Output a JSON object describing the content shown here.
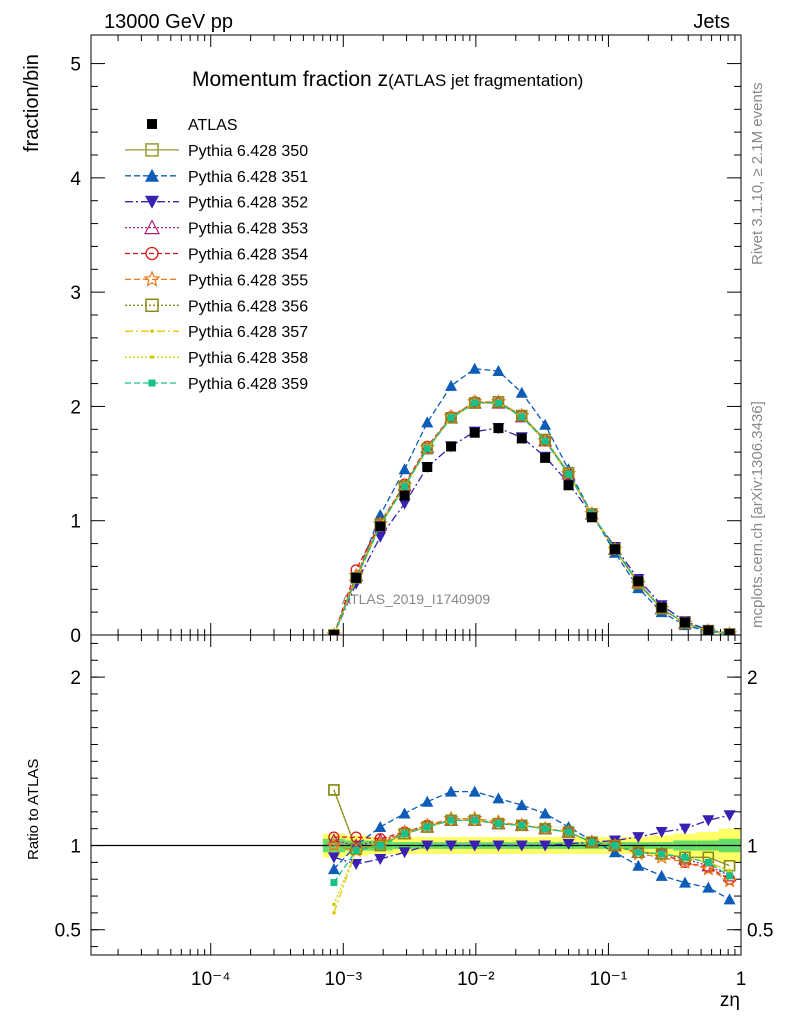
{
  "header": {
    "left": "13000 GeV pp",
    "right": "Jets"
  },
  "side_labels": {
    "rivet": "Rivet 3.1.10, ≥ 2.1M events",
    "mcplots": "mcplots.cern.ch [arXiv:1306.3436]"
  },
  "watermark": "ATLAS_2019_I1740909",
  "chart_data": {
    "type": "line",
    "title_main": "Momentum fraction z",
    "title_sub": "(ATLAS jet fragmentation)",
    "xlabel": "zη",
    "ylabel_top": "fraction/bin",
    "ylabel_ratio": "Ratio to ATLAS",
    "x_scale": "log",
    "xlim": [
      1.25e-05,
      1
    ],
    "ylim_top": [
      0,
      5.25
    ],
    "ylim_ratio": [
      0.35,
      2.25
    ],
    "x_tick_labels": [
      "10⁻⁴",
      "10⁻³",
      "10⁻²",
      "10⁻¹",
      "1"
    ],
    "x_tick_values": [
      0.0001,
      0.001,
      0.01,
      0.1,
      1
    ],
    "y_top_tick_labels": [
      "0",
      "1",
      "2",
      "3",
      "4",
      "5"
    ],
    "y_ratio_tick_labels": [
      "0.5",
      "1",
      "2"
    ],
    "y_ratio_tick_values": [
      0.5,
      1,
      2
    ],
    "legend_position": "top-left",
    "x": [
      0.00085,
      0.00125,
      0.0019,
      0.0029,
      0.0043,
      0.0065,
      0.0098,
      0.0148,
      0.0222,
      0.0333,
      0.05,
      0.075,
      0.112,
      0.168,
      0.252,
      0.378,
      0.567,
      0.82
    ],
    "series": [
      {
        "name": "ATLAS",
        "color": "#000000",
        "marker": "square-filled",
        "dash": "none",
        "values": [
          0.0,
          0.5,
          0.95,
          1.22,
          1.47,
          1.65,
          1.77,
          1.81,
          1.72,
          1.55,
          1.31,
          1.03,
          0.75,
          0.47,
          0.24,
          0.11,
          0.04,
          0.01
        ],
        "ratio": [
          1,
          1,
          1,
          1,
          1,
          1,
          1,
          1,
          1,
          1,
          1,
          1,
          1,
          1,
          1,
          1,
          1,
          1
        ]
      },
      {
        "name": "Pythia 6.428 350",
        "color": "#999933",
        "marker": "square-open",
        "dash": "solid",
        "values": [
          0.0,
          0.5,
          0.97,
          1.3,
          1.63,
          1.9,
          2.03,
          2.04,
          1.92,
          1.71,
          1.42,
          1.06,
          0.75,
          0.45,
          0.23,
          0.105,
          0.037,
          0.009
        ],
        "ratio": [
          1.33,
          0.98,
          1.0,
          1.07,
          1.11,
          1.15,
          1.15,
          1.13,
          1.12,
          1.1,
          1.08,
          1.02,
          1.0,
          0.96,
          0.95,
          0.93,
          0.93,
          0.88
        ]
      },
      {
        "name": "Pythia 6.428 351",
        "color": "#0c5cb8",
        "marker": "triangle-up",
        "dash": "6,3",
        "values": [
          0.0,
          0.5,
          1.05,
          1.45,
          1.86,
          2.18,
          2.33,
          2.31,
          2.12,
          1.84,
          1.45,
          1.06,
          0.72,
          0.41,
          0.2,
          0.086,
          0.03,
          0.007
        ],
        "ratio": [
          0.86,
          1.0,
          1.11,
          1.19,
          1.26,
          1.32,
          1.32,
          1.28,
          1.24,
          1.19,
          1.11,
          1.03,
          0.96,
          0.88,
          0.82,
          0.78,
          0.75,
          0.68
        ]
      },
      {
        "name": "Pythia 6.428 352",
        "color": "#3a20b0",
        "marker": "triangle-down",
        "dash": "8,3,2,3",
        "values": [
          0.0,
          0.45,
          0.86,
          1.15,
          1.47,
          1.65,
          1.78,
          1.81,
          1.73,
          1.56,
          1.33,
          1.05,
          0.77,
          0.49,
          0.26,
          0.12,
          0.045,
          0.012
        ],
        "ratio": [
          0.93,
          0.89,
          0.92,
          0.96,
          1.0,
          1.0,
          1.0,
          1.0,
          1.0,
          1.0,
          1.01,
          1.02,
          1.03,
          1.05,
          1.08,
          1.1,
          1.15,
          1.18
        ]
      },
      {
        "name": "Pythia 6.428 353",
        "color": "#b0207a",
        "marker": "triangle-up-open",
        "dash": "2,2",
        "values": [
          0.0,
          0.52,
          0.96,
          1.31,
          1.64,
          1.9,
          2.03,
          2.03,
          1.91,
          1.7,
          1.41,
          1.06,
          0.75,
          0.46,
          0.23,
          0.104,
          0.037,
          0.009
        ],
        "ratio": [
          1.03,
          1.0,
          1.03,
          1.07,
          1.11,
          1.15,
          1.15,
          1.13,
          1.12,
          1.1,
          1.08,
          1.02,
          1.0,
          0.96,
          0.95,
          0.92,
          0.88,
          0.82
        ]
      },
      {
        "name": "Pythia 6.428 354",
        "color": "#d61818",
        "marker": "circle-open",
        "dash": "5,3",
        "values": [
          0.0,
          0.57,
          0.98,
          1.32,
          1.65,
          1.91,
          2.04,
          2.03,
          1.92,
          1.7,
          1.41,
          1.06,
          0.75,
          0.46,
          0.23,
          0.104,
          0.037,
          0.009
        ],
        "ratio": [
          1.05,
          1.05,
          1.04,
          1.08,
          1.12,
          1.15,
          1.15,
          1.13,
          1.12,
          1.1,
          1.08,
          1.02,
          1.0,
          0.96,
          0.95,
          0.9,
          0.87,
          0.8
        ]
      },
      {
        "name": "Pythia 6.428 355",
        "color": "#f07818",
        "marker": "star-open",
        "dash": "6,3",
        "values": [
          0.0,
          0.52,
          0.97,
          1.31,
          1.64,
          1.91,
          2.04,
          2.04,
          1.92,
          1.7,
          1.41,
          1.06,
          0.75,
          0.45,
          0.23,
          0.103,
          0.036,
          0.009
        ],
        "ratio": [
          1.0,
          0.97,
          1.01,
          1.08,
          1.12,
          1.16,
          1.16,
          1.14,
          1.12,
          1.1,
          1.08,
          1.02,
          1.0,
          0.95,
          0.93,
          0.9,
          0.86,
          0.79
        ]
      },
      {
        "name": "Pythia 6.428 356",
        "color": "#8a8a18",
        "marker": "square-open",
        "dash": "2,2",
        "values": [
          0.0,
          0.5,
          0.97,
          1.3,
          1.63,
          1.9,
          2.03,
          2.04,
          1.92,
          1.71,
          1.42,
          1.06,
          0.75,
          0.45,
          0.23,
          0.105,
          0.037,
          0.009
        ],
        "ratio": [
          1.33,
          0.98,
          1.0,
          1.07,
          1.11,
          1.15,
          1.15,
          1.13,
          1.12,
          1.1,
          1.08,
          1.02,
          1.0,
          0.96,
          0.95,
          0.93,
          0.93,
          0.88
        ]
      },
      {
        "name": "Pythia 6.428 357",
        "color": "#e0c800",
        "marker": "dot",
        "dash": "8,3,2,3",
        "values": [
          0.0,
          0.48,
          0.96,
          1.3,
          1.63,
          1.9,
          2.03,
          2.03,
          1.91,
          1.7,
          1.41,
          1.06,
          0.75,
          0.46,
          0.23,
          0.104,
          0.037,
          0.009
        ],
        "ratio": [
          0.6,
          0.97,
          1.0,
          1.07,
          1.11,
          1.15,
          1.15,
          1.13,
          1.12,
          1.1,
          1.08,
          1.02,
          1.0,
          0.96,
          0.95,
          0.93,
          0.9,
          0.85
        ]
      },
      {
        "name": "Pythia 6.428 358",
        "color": "#c8d000",
        "marker": "dot",
        "dash": "2,2",
        "values": [
          0.0,
          0.48,
          0.96,
          1.3,
          1.63,
          1.9,
          2.03,
          2.03,
          1.91,
          1.7,
          1.41,
          1.06,
          0.75,
          0.46,
          0.23,
          0.104,
          0.037,
          0.009
        ],
        "ratio": [
          0.65,
          0.97,
          1.0,
          1.07,
          1.11,
          1.15,
          1.15,
          1.13,
          1.12,
          1.1,
          1.08,
          1.02,
          1.0,
          0.96,
          0.95,
          0.93,
          0.9,
          0.85
        ]
      },
      {
        "name": "Pythia 6.428 359",
        "color": "#18c08a",
        "marker": "square-small",
        "dash": "6,3",
        "values": [
          0.0,
          0.49,
          0.96,
          1.3,
          1.63,
          1.9,
          2.03,
          2.03,
          1.91,
          1.7,
          1.41,
          1.06,
          0.75,
          0.46,
          0.23,
          0.104,
          0.037,
          0.009
        ],
        "ratio": [
          0.78,
          0.97,
          1.0,
          1.07,
          1.11,
          1.15,
          1.15,
          1.13,
          1.12,
          1.1,
          1.08,
          1.02,
          1.0,
          0.96,
          0.95,
          0.93,
          0.9,
          0.82
        ]
      }
    ],
    "uncertainty_band": {
      "inner_half_width": [
        0.04,
        0.03,
        0.03,
        0.02,
        0.02,
        0.02,
        0.02,
        0.02,
        0.02,
        0.02,
        0.02,
        0.02,
        0.02,
        0.02,
        0.02,
        0.03,
        0.03,
        0.04
      ],
      "outer_half_width": [
        0.07,
        0.06,
        0.05,
        0.05,
        0.05,
        0.05,
        0.05,
        0.05,
        0.05,
        0.05,
        0.05,
        0.05,
        0.05,
        0.05,
        0.06,
        0.07,
        0.08,
        0.1
      ],
      "inner_color": "#66dd66",
      "outer_color": "#ffff66"
    }
  }
}
